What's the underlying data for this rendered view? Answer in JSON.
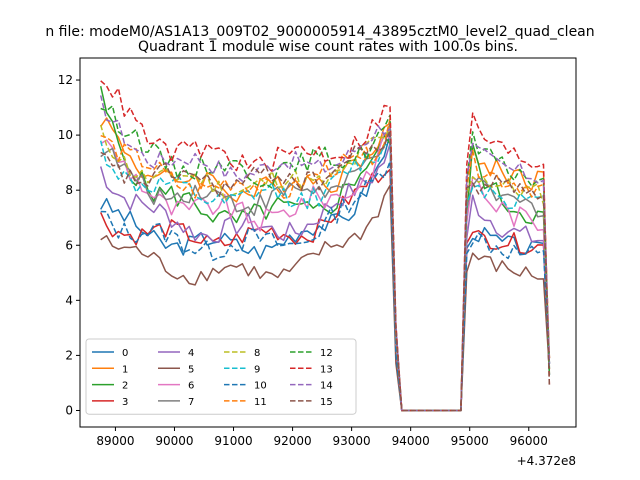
{
  "figure": {
    "suptitle": "n file: modeM0/AS1A13_009T02_9000005914_43895cztM0_level2_quad_clean"
  },
  "chart_data": {
    "type": "line",
    "title": "Quadrant 1 module wise count rates with 100.0s bins.",
    "xlabel": "",
    "ylabel": "",
    "x_offset_label": "+4.372e8",
    "xlim": [
      88400,
      96800
    ],
    "ylim": [
      -0.6,
      12.8
    ],
    "xticks": [
      89000,
      90000,
      91000,
      92000,
      93000,
      94000,
      95000,
      96000
    ],
    "xtick_labels": [
      "89000",
      "90000",
      "91000",
      "92000",
      "93000",
      "94000",
      "95000",
      "96000"
    ],
    "yticks": [
      0,
      2,
      4,
      6,
      8,
      10,
      12
    ],
    "ytick_labels": [
      "0",
      "2",
      "4",
      "6",
      "8",
      "10",
      "12"
    ],
    "grid": false,
    "legend": {
      "placement": "lower-left",
      "columns": 4
    },
    "segments": [
      {
        "x_start": 88750,
        "x_end": 93650,
        "step": 100
      },
      {
        "x_start": 93750,
        "x_end": 94850,
        "step": 100
      },
      {
        "x_start": 94950,
        "x_end": 96350,
        "step": 100
      }
    ],
    "series": [
      {
        "name": "0",
        "color": "#1f77b4",
        "dash": "solid",
        "level": 5.9,
        "start": 7.5,
        "end_rise": 9.6,
        "post": 6.2,
        "jitter": 0.35
      },
      {
        "name": "1",
        "color": "#ff7f0e",
        "dash": "solid",
        "level": 8.0,
        "start": 10.5,
        "end_rise": 10.2,
        "post": 8.8,
        "jitter": 0.45
      },
      {
        "name": "2",
        "color": "#2ca02c",
        "dash": "solid",
        "level": 6.9,
        "start": 11.2,
        "end_rise": 9.9,
        "post": 7.4,
        "jitter": 0.45
      },
      {
        "name": "3",
        "color": "#d62728",
        "dash": "solid",
        "level": 6.2,
        "start": 7.0,
        "end_rise": 9.3,
        "post": 6.4,
        "jitter": 0.35
      },
      {
        "name": "4",
        "color": "#9467bd",
        "dash": "solid",
        "level": 6.4,
        "start": 9.0,
        "end_rise": 9.7,
        "post": 6.6,
        "jitter": 0.4
      },
      {
        "name": "5",
        "color": "#8c564b",
        "dash": "solid",
        "level": 4.9,
        "start": 6.5,
        "end_rise": 8.2,
        "post": 5.3,
        "jitter": 0.3
      },
      {
        "name": "6",
        "color": "#e377c2",
        "dash": "solid",
        "level": 7.0,
        "start": 10.0,
        "end_rise": 9.9,
        "post": 7.2,
        "jitter": 0.45
      },
      {
        "name": "7",
        "color": "#7f7f7f",
        "dash": "solid",
        "level": 7.6,
        "start": 9.4,
        "end_rise": 9.8,
        "post": 7.8,
        "jitter": 0.4
      },
      {
        "name": "8",
        "color": "#bcbd22",
        "dash": "dashed",
        "level": 8.1,
        "start": 9.8,
        "end_rise": 10.0,
        "post": 8.3,
        "jitter": 0.4
      },
      {
        "name": "9",
        "color": "#17becf",
        "dash": "dashed",
        "level": 7.6,
        "start": 9.5,
        "end_rise": 9.8,
        "post": 7.9,
        "jitter": 0.4
      },
      {
        "name": "10",
        "color": "#1f77b4",
        "dash": "dashed",
        "level": 5.9,
        "start": 7.3,
        "end_rise": 9.5,
        "post": 6.0,
        "jitter": 0.4
      },
      {
        "name": "11",
        "color": "#ff7f0e",
        "dash": "dashed",
        "level": 8.0,
        "start": 10.3,
        "end_rise": 10.3,
        "post": 8.5,
        "jitter": 0.4
      },
      {
        "name": "12",
        "color": "#2ca02c",
        "dash": "dashed",
        "level": 8.6,
        "start": 11.3,
        "end_rise": 10.4,
        "post": 8.8,
        "jitter": 0.4
      },
      {
        "name": "13",
        "color": "#d62728",
        "dash": "dashed",
        "level": 9.0,
        "start": 12.2,
        "end_rise": 10.8,
        "post": 9.4,
        "jitter": 0.4
      },
      {
        "name": "14",
        "color": "#9467bd",
        "dash": "dashed",
        "level": 8.7,
        "start": 10.9,
        "end_rise": 10.3,
        "post": 8.9,
        "jitter": 0.35
      },
      {
        "name": "15",
        "color": "#8c564b",
        "dash": "dashed",
        "level": 8.3,
        "start": 9.0,
        "end_rise": 9.9,
        "post": 8.5,
        "jitter": 0.4
      }
    ]
  }
}
